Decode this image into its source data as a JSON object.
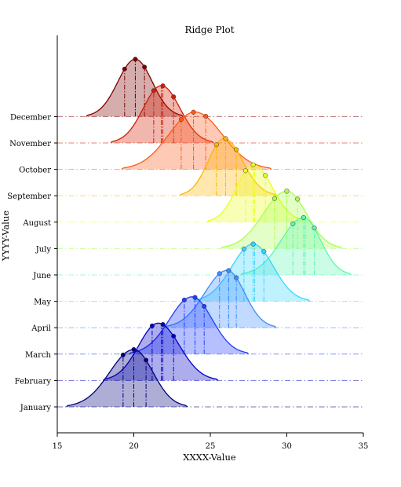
{
  "chart_data": {
    "type": "ridgeline",
    "title": "Ridge Plot",
    "xlabel": "XXXX-Value",
    "ylabel": "YYYY-Value",
    "xlim": [
      15,
      35
    ],
    "xticks": [
      15,
      20,
      25,
      30,
      35
    ],
    "grid": false,
    "legend": "none",
    "series": [
      {
        "name": "January",
        "color": "#00007f",
        "range": [
          15.6,
          23.5
        ],
        "peak": 20.0,
        "mean": 20.0,
        "quartiles": [
          19.3,
          20.0,
          20.8
        ]
      },
      {
        "name": "February",
        "color": "#0000c8",
        "range": [
          18.0,
          25.5
        ],
        "peak": 21.6,
        "mean": 21.8,
        "quartiles": [
          21.2,
          21.9,
          22.6
        ]
      },
      {
        "name": "March",
        "color": "#1f3cff",
        "range": [
          19.7,
          27.5
        ],
        "peak": 23.8,
        "mean": 24.0,
        "quartiles": [
          23.3,
          24.0,
          24.6
        ]
      },
      {
        "name": "April",
        "color": "#3d8bff",
        "range": [
          22.0,
          29.3
        ],
        "peak": 26.1,
        "mean": 26.2,
        "quartiles": [
          25.6,
          26.2,
          26.7
        ]
      },
      {
        "name": "May",
        "color": "#39d4ff",
        "range": [
          23.9,
          31.5
        ],
        "peak": 27.8,
        "mean": 27.9,
        "quartiles": [
          27.2,
          27.8,
          28.5
        ]
      },
      {
        "name": "June",
        "color": "#5cf5b0",
        "range": [
          27.0,
          34.2
        ],
        "peak": 31.1,
        "mean": 31.2,
        "quartiles": [
          30.4,
          31.1,
          31.8
        ]
      },
      {
        "name": "July",
        "color": "#a8ff50",
        "range": [
          25.7,
          33.6
        ],
        "peak": 30.0,
        "mean": 30.0,
        "quartiles": [
          29.2,
          30.0,
          30.7
        ]
      },
      {
        "name": "August",
        "color": "#e9ff1a",
        "range": [
          24.8,
          31.3
        ],
        "peak": 27.8,
        "mean": 27.9,
        "quartiles": [
          27.3,
          27.8,
          28.6
        ]
      },
      {
        "name": "September",
        "color": "#ffb400",
        "range": [
          23.0,
          29.3
        ],
        "peak": 25.9,
        "mean": 26.0,
        "quartiles": [
          25.4,
          26.0,
          26.7
        ]
      },
      {
        "name": "October",
        "color": "#ff5a18",
        "range": [
          19.2,
          29.0
        ],
        "peak": 24.0,
        "mean": 23.9,
        "quartiles": [
          23.1,
          23.9,
          24.7
        ]
      },
      {
        "name": "November",
        "color": "#d21c00",
        "range": [
          18.5,
          25.2
        ],
        "peak": 21.8,
        "mean": 21.8,
        "quartiles": [
          21.3,
          21.9,
          22.6
        ]
      },
      {
        "name": "December",
        "color": "#7f0000",
        "range": [
          16.9,
          23.2
        ],
        "peak": 20.1,
        "mean": 20.1,
        "quartiles": [
          19.4,
          20.1,
          20.7
        ]
      }
    ]
  }
}
